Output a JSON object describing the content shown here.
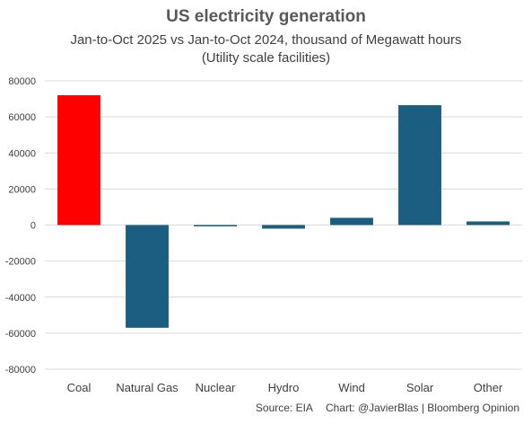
{
  "chart_data": {
    "type": "bar",
    "title": "US electricity generation",
    "subtitle_line1": "Jan-to-Oct 2025 vs Jan-to-Oct 2024, thousand of Megawatt hours",
    "subtitle_line2": "(Utility scale facilities)",
    "categories": [
      "Coal",
      "Natural Gas",
      "Nuclear",
      "Hydro",
      "Wind",
      "Solar",
      "Other"
    ],
    "values": [
      72000,
      -57000,
      -700,
      -2000,
      4000,
      66500,
      2000
    ],
    "bar_colors": [
      "#FF0000",
      "#1B5E82",
      "#1B5E82",
      "#1B5E82",
      "#1B5E82",
      "#1B5E82",
      "#1B5E82"
    ],
    "ylim": [
      -80000,
      80000
    ],
    "yticks": [
      "80000",
      "60000",
      "40000",
      "20000",
      "0",
      "-20000",
      "-40000",
      "-60000",
      "-80000"
    ],
    "ytick_values": [
      80000,
      60000,
      40000,
      20000,
      0,
      -20000,
      -40000,
      -60000,
      -80000
    ],
    "grid": true,
    "xlabel": "",
    "ylabel": ""
  },
  "footer": {
    "source": "Source: EIA",
    "credit": "Chart: @JavierBlas | Bloomberg Opinion"
  },
  "colors": {
    "coal": "#FF0000",
    "primary": "#1B5E82",
    "grid": "#D9D9D9"
  }
}
